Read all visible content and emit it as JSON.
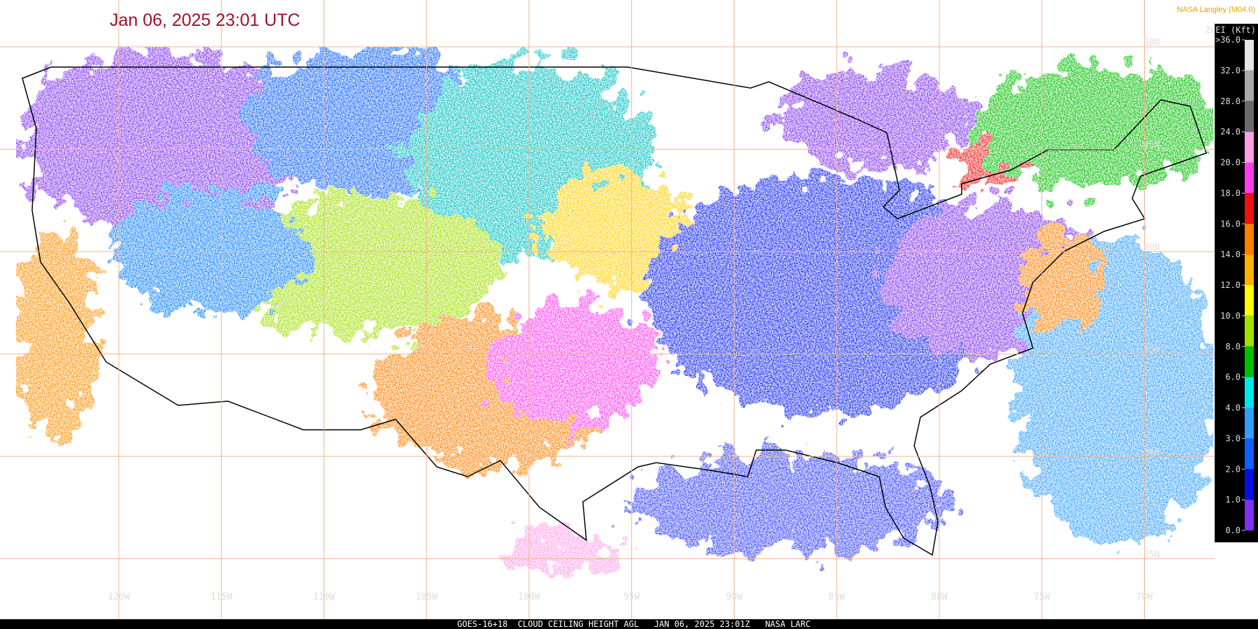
{
  "header": {
    "title": "Jan 06, 2025 23:01 UTC",
    "credit": "NASA Langley (M04.0)"
  },
  "map": {
    "lon_lines": [
      {
        "value": -120,
        "label": "120W"
      },
      {
        "value": -115,
        "label": "115W"
      },
      {
        "value": -110,
        "label": "110W"
      },
      {
        "value": -105,
        "label": "105W"
      },
      {
        "value": -100,
        "label": "100W"
      },
      {
        "value": -95,
        "label": "95W"
      },
      {
        "value": -90,
        "label": "90W"
      },
      {
        "value": -85,
        "label": "85W"
      },
      {
        "value": -80,
        "label": "80W"
      },
      {
        "value": -75,
        "label": "75W"
      },
      {
        "value": -70,
        "label": "70W"
      }
    ],
    "lat_lines": [
      {
        "value": 50,
        "label": "50N"
      },
      {
        "value": 45,
        "label": "45N"
      },
      {
        "value": 40,
        "label": "40N"
      },
      {
        "value": 35,
        "label": "35N"
      },
      {
        "value": 30,
        "label": "30N"
      },
      {
        "value": 25,
        "label": "25N"
      }
    ]
  },
  "colorbar": {
    "title": "ZCEI (Kft)",
    "ticks": [
      {
        "value": 36,
        "label": ">36.0"
      },
      {
        "value": 32,
        "label": "32.0"
      },
      {
        "value": 28,
        "label": "28.0"
      },
      {
        "value": 24,
        "label": "24.0"
      },
      {
        "value": 20,
        "label": "20.0"
      },
      {
        "value": 18,
        "label": "18.0"
      },
      {
        "value": 16,
        "label": "16.0"
      },
      {
        "value": 14,
        "label": "14.0"
      },
      {
        "value": 12,
        "label": "12.0"
      },
      {
        "value": 10,
        "label": "10.0"
      },
      {
        "value": 8,
        "label": "8.0"
      },
      {
        "value": 6,
        "label": "6.0"
      },
      {
        "value": 4,
        "label": "4.0"
      },
      {
        "value": 3,
        "label": "3.0"
      },
      {
        "value": 2,
        "label": "2.0"
      },
      {
        "value": 1,
        "label": "1.0"
      },
      {
        "value": 0,
        "label": "0.0"
      }
    ],
    "colors": [
      "#e6e6e6",
      "#a8a8a8",
      "#6a6a6a",
      "#ff9ee8",
      "#ff3cf0",
      "#f01010",
      "#ff8000",
      "#ffb000",
      "#ffff00",
      "#a0e000",
      "#00c000",
      "#00e8e8",
      "#30a0ff",
      "#1060ff",
      "#0010e0",
      "#8030f0"
    ]
  },
  "footer": "GOES-16+18  CLOUD CEILING HEIGHT AGL   JAN 06, 2025 23:01Z   NASA LARC"
}
